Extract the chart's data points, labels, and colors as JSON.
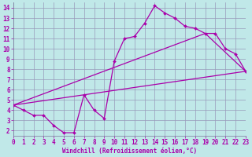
{
  "xlabel": "Windchill (Refroidissement éolien,°C)",
  "bg_color": "#c0e8e8",
  "line_color": "#aa00aa",
  "grid_color": "#9999bb",
  "series1_x": [
    0,
    1,
    2,
    3,
    4,
    5,
    6,
    7,
    8,
    9,
    10,
    11,
    12,
    13,
    14,
    15,
    16,
    17,
    18,
    19,
    20,
    21,
    22,
    23
  ],
  "series1_y": [
    4.5,
    4.0,
    3.5,
    3.5,
    2.5,
    1.8,
    1.8,
    5.5,
    4.0,
    3.2,
    8.8,
    11.0,
    11.2,
    12.5,
    14.2,
    13.5,
    13.0,
    12.2,
    12.0,
    11.5,
    11.5,
    10.0,
    9.5,
    7.8
  ],
  "series2_x": [
    0,
    23
  ],
  "series2_y": [
    4.5,
    7.8
  ],
  "series3_x": [
    0,
    19,
    23
  ],
  "series3_y": [
    4.5,
    11.5,
    7.8
  ],
  "xlim": [
    0,
    23
  ],
  "ylim": [
    1.5,
    14.5
  ],
  "xticks": [
    0,
    1,
    2,
    3,
    4,
    5,
    6,
    7,
    8,
    9,
    10,
    11,
    12,
    13,
    14,
    15,
    16,
    17,
    18,
    19,
    20,
    21,
    22,
    23
  ],
  "yticks": [
    2,
    3,
    4,
    5,
    6,
    7,
    8,
    9,
    10,
    11,
    12,
    13,
    14
  ],
  "tick_fontsize": 5.5,
  "xlabel_fontsize": 5.5
}
